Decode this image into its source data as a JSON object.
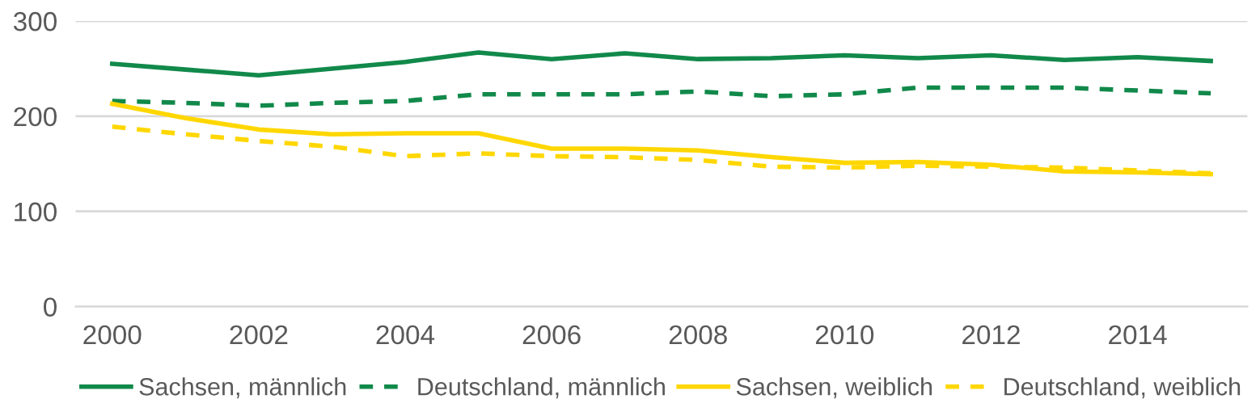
{
  "chart_data": {
    "type": "line",
    "x": [
      2000,
      2001,
      2002,
      2003,
      2004,
      2005,
      2006,
      2007,
      2008,
      2009,
      2010,
      2011,
      2012,
      2013,
      2014,
      2015
    ],
    "series": [
      {
        "name": "Sachsen, männlich",
        "color": "#11894a",
        "line_style": "solid",
        "values": [
          255,
          249,
          243,
          250,
          257,
          267,
          260,
          266,
          260,
          261,
          264,
          261,
          264,
          259,
          262,
          258
        ]
      },
      {
        "name": "Deutschland, männlich",
        "color": "#11894a",
        "line_style": "dashed",
        "values": [
          216,
          214,
          211,
          214,
          216,
          223,
          223,
          223,
          226,
          221,
          223,
          230,
          230,
          230,
          227,
          224
        ]
      },
      {
        "name": "Sachsen, weiblich",
        "color": "#ffd700",
        "line_style": "solid",
        "values": [
          213,
          198,
          186,
          181,
          182,
          182,
          166,
          166,
          164,
          157,
          151,
          152,
          149,
          142,
          141,
          139
        ]
      },
      {
        "name": "Deutschland, weiblich",
        "color": "#ffd700",
        "line_style": "dashed",
        "values": [
          189,
          181,
          174,
          168,
          158,
          161,
          158,
          157,
          154,
          147,
          146,
          148,
          147,
          146,
          143,
          140
        ]
      }
    ],
    "xlim": [
      1999.5,
      2015.5
    ],
    "xticks": [
      2000,
      2002,
      2004,
      2006,
      2008,
      2010,
      2012,
      2014
    ],
    "ylim": [
      0,
      300
    ],
    "yticks": [
      0,
      100,
      200,
      300
    ],
    "grid": "y",
    "legend": "bottom"
  }
}
